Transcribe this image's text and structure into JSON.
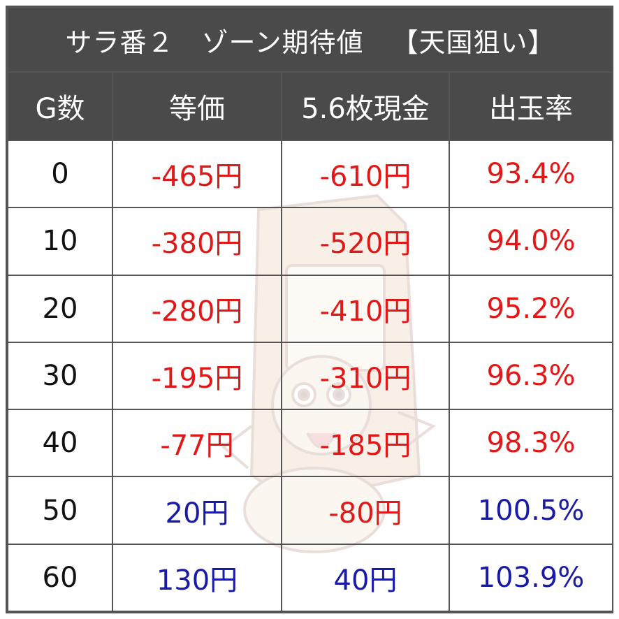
{
  "title": {
    "main": "サラ番２　ゾーン期待値",
    "tag": "【天国狙い】"
  },
  "columns": [
    "G数",
    "等価",
    "5.6枚現金",
    "出玉率"
  ],
  "rows": [
    {
      "games": "0",
      "equal": "-465円",
      "cash": "-610円",
      "payout": "93.4%",
      "equal_sign": "neg",
      "cash_sign": "neg",
      "payout_sign": "neg"
    },
    {
      "games": "10",
      "equal": "-380円",
      "cash": "-520円",
      "payout": "94.0%",
      "equal_sign": "neg",
      "cash_sign": "neg",
      "payout_sign": "neg"
    },
    {
      "games": "20",
      "equal": "-280円",
      "cash": "-410円",
      "payout": "95.2%",
      "equal_sign": "neg",
      "cash_sign": "neg",
      "payout_sign": "neg"
    },
    {
      "games": "30",
      "equal": "-195円",
      "cash": "-310円",
      "payout": "96.3%",
      "equal_sign": "neg",
      "cash_sign": "neg",
      "payout_sign": "neg"
    },
    {
      "games": "40",
      "equal": "-77円",
      "cash": "-185円",
      "payout": "98.3%",
      "equal_sign": "neg",
      "cash_sign": "neg",
      "payout_sign": "neg"
    },
    {
      "games": "50",
      "equal": "20円",
      "cash": "-80円",
      "payout": "100.5%",
      "equal_sign": "pos",
      "cash_sign": "neg",
      "payout_sign": "pos"
    },
    {
      "games": "60",
      "equal": "130円",
      "cash": "40円",
      "payout": "103.9%",
      "equal_sign": "pos",
      "cash_sign": "pos",
      "payout_sign": "pos"
    }
  ],
  "colors": {
    "header_bg": "#4a4a4a",
    "negative": "#e01818",
    "positive": "#1a1aa8",
    "watermark": "pachislot-mascot-icon"
  }
}
